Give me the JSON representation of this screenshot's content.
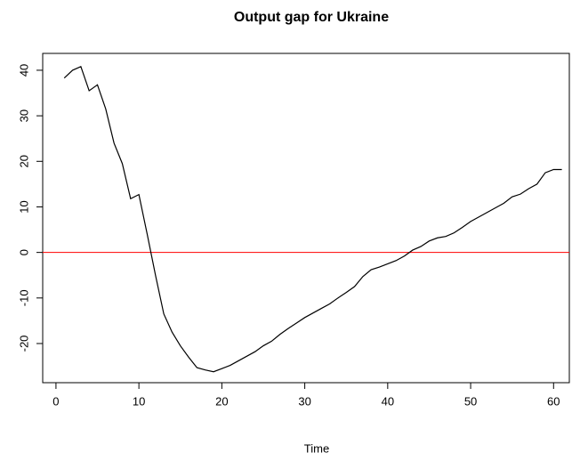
{
  "chart_data": {
    "type": "line",
    "title": "Output gap for Ukraine",
    "x_label": "Time",
    "x": [
      1,
      2,
      3,
      4,
      5,
      6,
      7,
      8,
      9,
      10,
      11,
      12,
      13,
      14,
      15,
      16,
      17,
      18,
      19,
      20,
      21,
      22,
      23,
      24,
      25,
      26,
      27,
      28,
      29,
      30,
      31,
      32,
      33,
      34,
      35,
      36,
      37,
      38,
      39,
      40,
      41,
      42,
      43,
      44,
      45,
      46,
      47,
      48,
      49,
      50,
      51,
      52,
      53,
      54,
      55,
      56,
      57,
      58,
      59,
      60,
      61
    ],
    "series": [
      {
        "color": "#000000",
        "values": [
          38.3,
          40,
          40.8,
          35.5,
          36.8,
          31.5,
          24,
          19.5,
          11.8,
          12.7,
          4,
          -5,
          -13.5,
          -17.5,
          -20.5,
          -23,
          -25.3,
          -25.8,
          -26.2,
          -25.5,
          -24.8,
          -23.8,
          -22.8,
          -21.8,
          -20.5,
          -19.5,
          -18,
          -16.7,
          -15.5,
          -14.3,
          -13.3,
          -12.3,
          -11.3,
          -10,
          -8.8,
          -7.5,
          -5.3,
          -3.8,
          -3.2,
          -2.5,
          -1.8,
          -0.8,
          0.5,
          1.3,
          2.5,
          3.2,
          3.5,
          4.3,
          5.5,
          6.8,
          7.8,
          8.8,
          9.8,
          10.8,
          12.2,
          12.8,
          14,
          15,
          17.5,
          18.2,
          18.2
        ]
      }
    ],
    "hline": {
      "value": 0,
      "color": "#ff0000"
    },
    "xlim": [
      -1.6,
      61.9
    ],
    "xticks": [
      0,
      10,
      20,
      30,
      40,
      50,
      60
    ],
    "ylim": [
      -28.6,
      43.7
    ],
    "yticks": [
      -20,
      -10,
      0,
      10,
      20,
      30,
      40
    ]
  }
}
